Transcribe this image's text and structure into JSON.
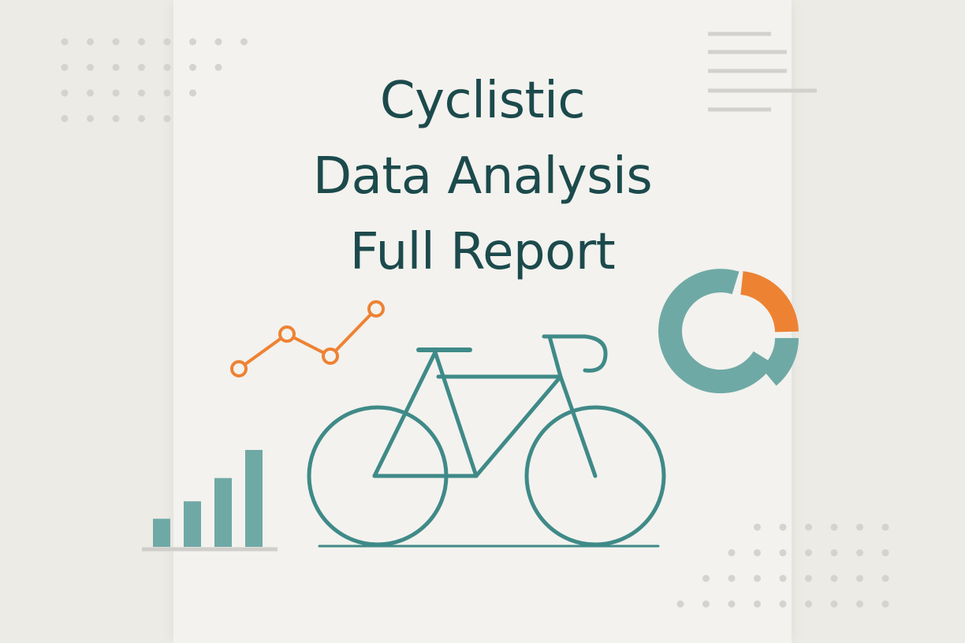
{
  "cover": {
    "title_lines": [
      "Cyclistic",
      "Data Analysis",
      "Full Report"
    ]
  },
  "colors": {
    "teal": "#3f8a88",
    "teal_light": "#6fa9a5",
    "orange": "#ee8233",
    "title": "#1c4a4c",
    "page": "#f3f2ee",
    "background": "#ecebe6",
    "dots": "#d4d3cf"
  },
  "icons": {
    "bicycle": "bicycle-icon",
    "line_chart": "line-chart-icon",
    "bar_chart": "bar-chart-icon",
    "donut_chart": "donut-chart-icon",
    "text_lines": "text-lines-icon"
  },
  "decor": {
    "bar_chart_levels": [
      0.29,
      0.47,
      0.71,
      1.0
    ],
    "donut_orange_fraction": 0.25
  }
}
